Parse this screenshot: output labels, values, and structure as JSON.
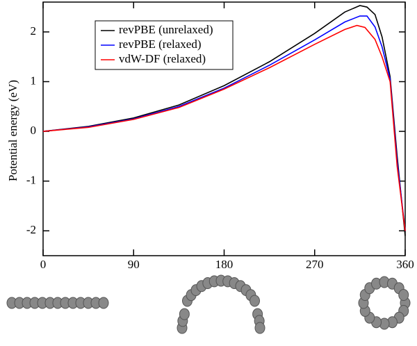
{
  "chart_data": {
    "type": "line",
    "y_label": "Potential energy (eV)",
    "xlim": [
      0,
      360
    ],
    "xticks": [
      0,
      90,
      180,
      270,
      360
    ],
    "ylim": [
      -2.5,
      2.6
    ],
    "yticks": [
      -2,
      -1,
      0,
      1,
      2
    ],
    "legend": "upper left",
    "series": [
      {
        "name": "revPBE (unrelaxed)",
        "color": "#000000",
        "x": [
          0,
          45,
          90,
          135,
          180,
          225,
          270,
          300,
          315,
          322,
          330,
          337,
          345,
          352,
          360
        ],
        "values": [
          0,
          0.1,
          0.27,
          0.53,
          0.92,
          1.4,
          1.97,
          2.4,
          2.53,
          2.5,
          2.35,
          1.9,
          1.1,
          -0.5,
          -2.1
        ]
      },
      {
        "name": "revPBE (relaxed)",
        "color": "#0000ff",
        "x": [
          0,
          45,
          90,
          135,
          180,
          225,
          270,
          300,
          315,
          322,
          330,
          337,
          345,
          352,
          360
        ],
        "values": [
          0,
          0.09,
          0.25,
          0.5,
          0.87,
          1.33,
          1.84,
          2.2,
          2.32,
          2.32,
          2.1,
          1.7,
          1.05,
          -0.6,
          -2.0
        ]
      },
      {
        "name": "vdW-DF (relaxed)",
        "color": "#ff0000",
        "x": [
          0,
          45,
          90,
          135,
          180,
          225,
          270,
          300,
          312,
          320,
          330,
          337,
          345,
          352,
          360
        ],
        "values": [
          0,
          0.08,
          0.24,
          0.48,
          0.85,
          1.28,
          1.75,
          2.05,
          2.13,
          2.09,
          1.85,
          1.5,
          1.0,
          -0.7,
          -2.0
        ]
      }
    ]
  }
}
